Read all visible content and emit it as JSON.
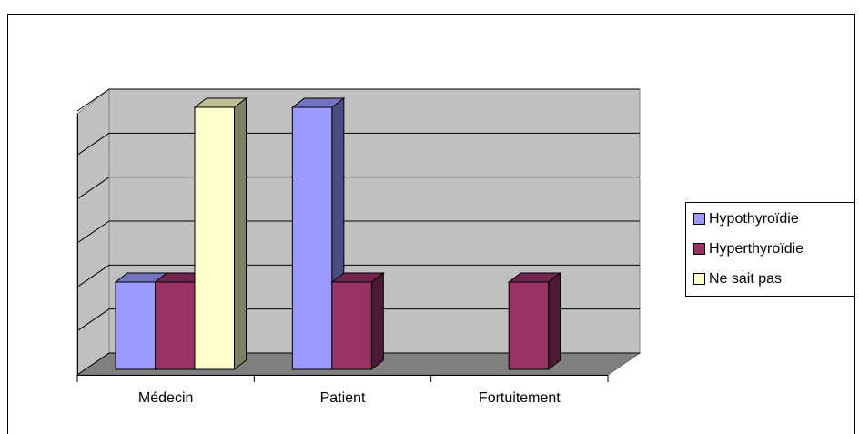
{
  "chart_data": {
    "type": "bar3d",
    "categories": [
      "Médecin",
      "Patient",
      "Fortuitement"
    ],
    "series": [
      {
        "name": "Hypothyroïdie",
        "color": "#9999ff",
        "values": [
          1,
          3,
          null
        ]
      },
      {
        "name": "Hyperthyroïdie",
        "color": "#993366",
        "values": [
          1,
          1,
          1
        ]
      },
      {
        "name": "Ne sait pas",
        "color": "#ffffcc",
        "values": [
          3,
          null,
          null
        ]
      }
    ],
    "ylim": [
      0,
      3
    ],
    "yticks": [
      0,
      0.5,
      1,
      1.5,
      2,
      2.5,
      3
    ],
    "grid": true,
    "legend": "right"
  }
}
